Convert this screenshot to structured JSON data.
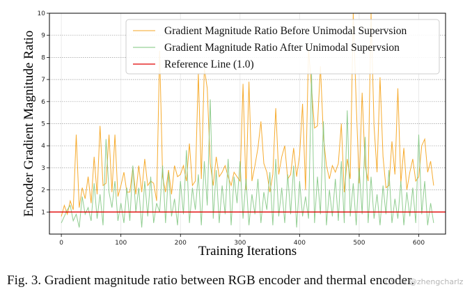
{
  "chart_data": {
    "type": "line",
    "xlabel": "Training Iterations",
    "ylabel": "Encoder Gradient Magnitude Ratio",
    "xlim": [
      -20,
      645
    ],
    "ylim": [
      0,
      10
    ],
    "x_ticks": [
      0,
      100,
      200,
      300,
      400,
      500,
      600
    ],
    "y_ticks": [
      1,
      2,
      3,
      4,
      5,
      6,
      7,
      8,
      9,
      10
    ],
    "grid": "horizontal dotted at integer y, vertical light",
    "legend_position": "top-right",
    "x_range": [
      0,
      625
    ],
    "x_step": 5,
    "series": [
      {
        "name": "Gradient Magnitude Ratio Before Unimodal Supervsion",
        "color": "#f5a623",
        "values": [
          0.8,
          1.3,
          0.9,
          1.5,
          1.1,
          4.5,
          1.2,
          2.1,
          1.6,
          2.6,
          1.4,
          3.5,
          1.8,
          4.9,
          2.2,
          2.3,
          4.5,
          1.9,
          4.5,
          1.7,
          2.2,
          2.8,
          1.9,
          1.9,
          3.0,
          1.8,
          3.1,
          1.9,
          3.4,
          2.2,
          2.4,
          2.3,
          1.5,
          8.3,
          2.6,
          1.9,
          2.9,
          1.8,
          3.1,
          2.6,
          2.7,
          3.1,
          2.4,
          4.1,
          2.2,
          2.4,
          7.3,
          2.5,
          7.5,
          6.6,
          3.2,
          2.2,
          3.5,
          2.6,
          2.8,
          3.1,
          2.6,
          2.2,
          2.8,
          2.6,
          2.4,
          6.8,
          2.0,
          6.9,
          2.4,
          3.1,
          3.9,
          5.1,
          3.2,
          2.8,
          1.9,
          2.7,
          5.7,
          2.7,
          3.5,
          4.0,
          2.5,
          2.7,
          3.9,
          2.6,
          3.6,
          5.9,
          2.0,
          8.4,
          6.6,
          4.8,
          4.9,
          7.6,
          4.4,
          3.1,
          2.5,
          3.1,
          2.8,
          3.2,
          5.0,
          1.9,
          3.4,
          2.5,
          10.0,
          5.9,
          2.3,
          6.4,
          3.1,
          2.4,
          10.0,
          4.9,
          2.8,
          7.1,
          3.5,
          2.1,
          2.2,
          4.2,
          2.7,
          6.6,
          2.3,
          3.9,
          2.0,
          2.8,
          3.4,
          2.4,
          2.6,
          4.0,
          4.3,
          2.8,
          3.3,
          2.2
        ]
      },
      {
        "name": "Gradient Magnitude Ratio After Unimodal Supervsion",
        "color": "#7dc47d",
        "values": [
          0.5,
          0.8,
          1.1,
          1.3,
          0.6,
          0.9,
          0.3,
          1.7,
          0.9,
          1.2,
          0.6,
          2.3,
          0.7,
          1.8,
          0.4,
          4.3,
          1.9,
          1.2,
          2.4,
          0.6,
          1.4,
          0.5,
          2.1,
          0.6,
          3.1,
          1.0,
          2.1,
          0.3,
          2.4,
          0.8,
          2.6,
          0.5,
          1.4,
          1.0,
          3.1,
          0.5,
          2.8,
          0.8,
          1.6,
          0.4,
          2.4,
          0.9,
          3.8,
          0.5,
          2.1,
          1.1,
          2.7,
          0.4,
          3.3,
          1.3,
          6.1,
          0.7,
          2.9,
          0.5,
          2.2,
          0.9,
          3.4,
          0.4,
          2.6,
          1.4,
          3.3,
          0.7,
          2.5,
          0.4,
          1.8,
          0.9,
          2.5,
          0.5,
          1.9,
          1.1,
          2.8,
          0.4,
          3.4,
          0.8,
          2.1,
          0.5,
          2.7,
          0.9,
          3.1,
          0.3,
          2.4,
          0.8,
          1.7,
          0.7,
          7.3,
          0.5,
          2.6,
          0.9,
          5.1,
          0.4,
          2.0,
          0.8,
          2.5,
          0.6,
          3.3,
          0.5,
          5.6,
          0.8,
          2.3,
          0.4,
          3.0,
          0.9,
          4.4,
          0.5,
          2.6,
          0.7,
          1.8,
          0.4,
          2.2,
          0.9,
          2.9,
          0.5,
          1.6,
          0.7,
          2.4,
          0.4,
          1.9,
          0.8,
          2.1,
          0.5,
          4.5,
          0.9,
          2.4,
          0.4,
          1.4,
          0.5
        ]
      },
      {
        "name": "Reference Line (1.0)",
        "color": "#e00000",
        "constant": 1.0
      }
    ]
  },
  "caption": "Fig. 3.  Gradient magnitude ratio between RGB encoder and thermal encoder.",
  "watermark": "CSDN @zhengcharlz"
}
